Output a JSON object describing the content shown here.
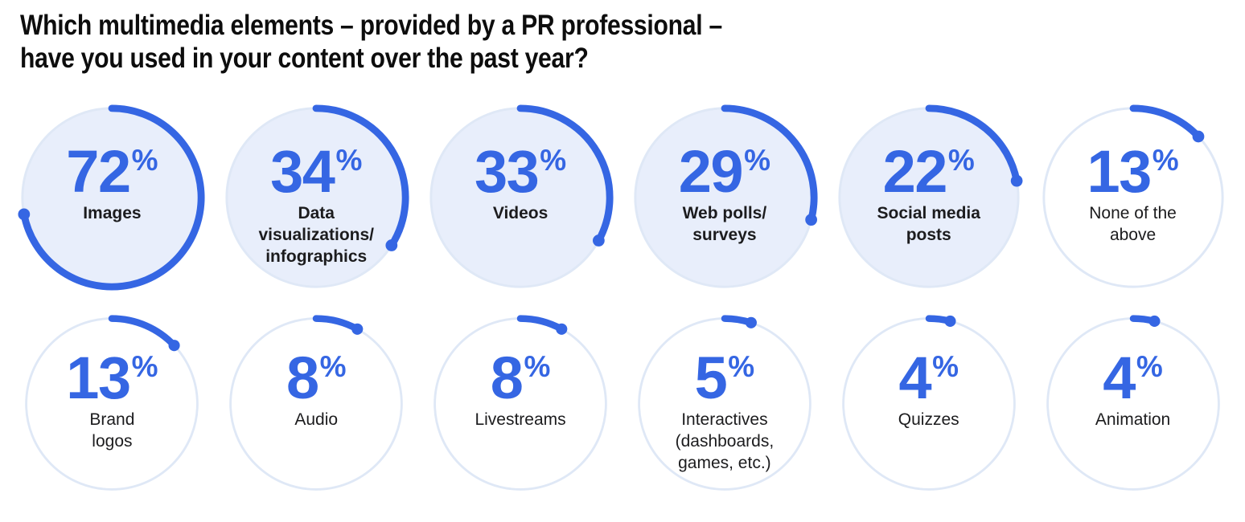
{
  "title": {
    "line1": "Which multimedia elements – provided by a PR professional –",
    "line2": "have you used in your content over the past year?"
  },
  "colors": {
    "accent_blue": "#3566E3",
    "circle_fill_light": "#E8EEFB",
    "track_ring": "#DFE8F6",
    "title_ink": "#0D0D0D",
    "label_ink": "#1C1C1E"
  },
  "chart_data": {
    "type": "pie",
    "variant": "radial-progress-rings",
    "title": "Which multimedia elements – provided by a PR professional – have you used in your content over the past year?",
    "unit": "%",
    "value_range": [
      0,
      100
    ],
    "layout": {
      "rows": 2,
      "cols": 6,
      "start_angle": "top",
      "direction": "clockwise",
      "legend": "none"
    },
    "items": [
      {
        "label": "Images",
        "value": 72,
        "filled": true,
        "bold": true
      },
      {
        "label": "Data\nvisualizations/\ninfographics",
        "value": 34,
        "filled": true,
        "bold": true
      },
      {
        "label": "Videos",
        "value": 33,
        "filled": true,
        "bold": true
      },
      {
        "label": "Web polls/\nsurveys",
        "value": 29,
        "filled": true,
        "bold": true
      },
      {
        "label": "Social media\nposts",
        "value": 22,
        "filled": true,
        "bold": true
      },
      {
        "label": "None of the\nabove",
        "value": 13,
        "filled": false,
        "bold": false
      },
      {
        "label": "Brand\nlogos",
        "value": 13,
        "filled": false,
        "bold": false
      },
      {
        "label": "Audio",
        "value": 8,
        "filled": false,
        "bold": false
      },
      {
        "label": "Livestreams",
        "value": 8,
        "filled": false,
        "bold": false
      },
      {
        "label": "Interactives\n(dashboards,\ngames, etc.)",
        "value": 5,
        "filled": false,
        "bold": false
      },
      {
        "label": "Quizzes",
        "value": 4,
        "filled": false,
        "bold": false
      },
      {
        "label": "Animation",
        "value": 4,
        "filled": false,
        "bold": false
      }
    ]
  }
}
